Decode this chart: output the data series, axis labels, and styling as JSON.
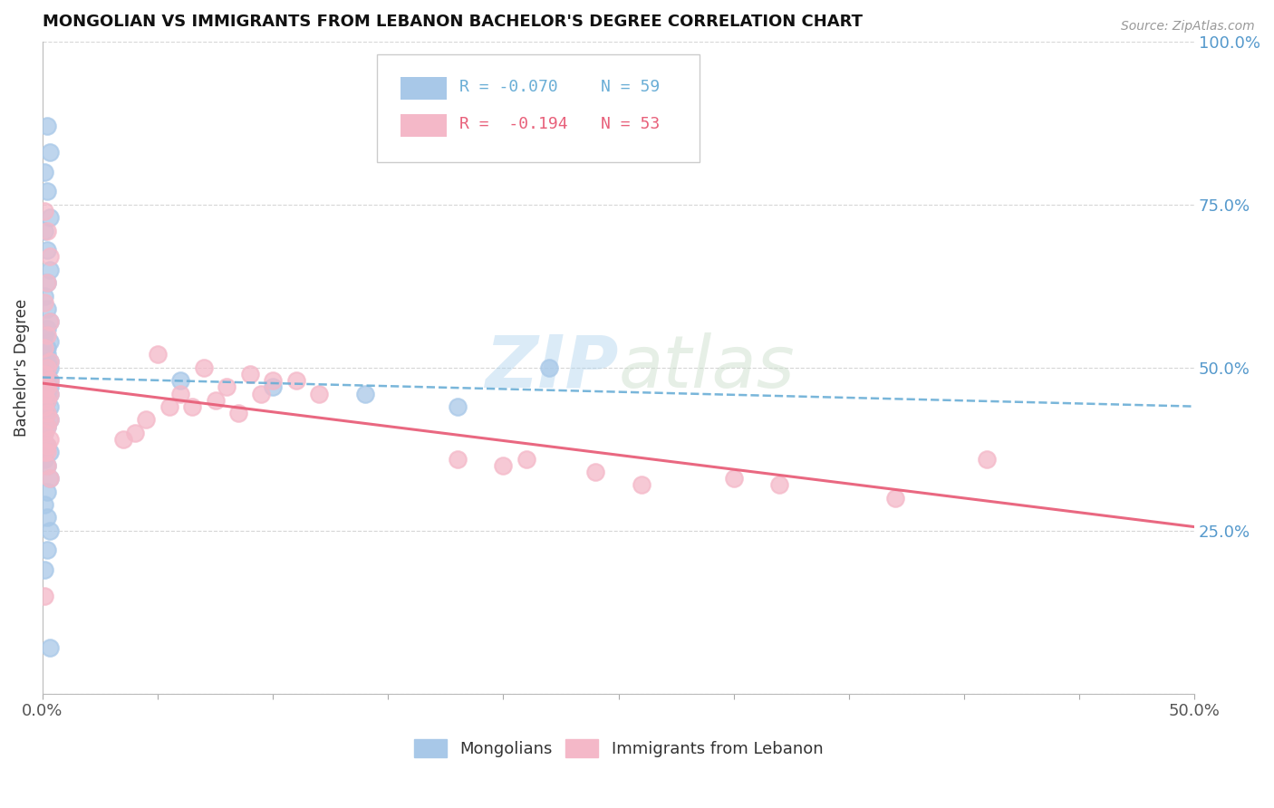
{
  "title": "MONGOLIAN VS IMMIGRANTS FROM LEBANON BACHELOR'S DEGREE CORRELATION CHART",
  "source": "Source: ZipAtlas.com",
  "ylabel": "Bachelor's Degree",
  "xlim": [
    0.0,
    0.5
  ],
  "ylim": [
    0.0,
    1.0
  ],
  "xtick_positions": [
    0.0,
    0.05,
    0.1,
    0.15,
    0.2,
    0.25,
    0.3,
    0.35,
    0.4,
    0.45,
    0.5
  ],
  "xticklabels": [
    "0.0%",
    "",
    "",
    "",
    "",
    "",
    "",
    "",
    "",
    "",
    "50.0%"
  ],
  "ytick_positions": [
    0.0,
    0.25,
    0.5,
    0.75,
    1.0
  ],
  "yticklabels": [
    "",
    "25.0%",
    "50.0%",
    "75.0%",
    "100.0%"
  ],
  "legend_r1": "R = -0.070",
  "legend_n1": "N = 59",
  "legend_r2": "R =  -0.194",
  "legend_n2": "N = 53",
  "mongolian_color": "#a8c8e8",
  "lebanon_color": "#f4b8c8",
  "mongolian_line_color": "#6aaed6",
  "lebanon_line_color": "#e8607a",
  "watermark_zip": "ZIP",
  "watermark_atlas": "atlas",
  "mongolian_x": [
    0.002,
    0.003,
    0.001,
    0.002,
    0.003,
    0.001,
    0.002,
    0.003,
    0.002,
    0.001,
    0.002,
    0.003,
    0.002,
    0.001,
    0.003,
    0.002,
    0.001,
    0.002,
    0.003,
    0.002,
    0.001,
    0.002,
    0.003,
    0.002,
    0.001,
    0.003,
    0.002,
    0.001,
    0.002,
    0.003,
    0.001,
    0.002,
    0.003,
    0.002,
    0.001,
    0.002,
    0.003,
    0.002,
    0.001,
    0.003,
    0.002,
    0.001,
    0.002,
    0.003,
    0.001,
    0.002,
    0.003,
    0.002,
    0.001,
    0.002,
    0.003,
    0.002,
    0.001,
    0.003,
    0.14,
    0.18,
    0.22,
    0.1,
    0.06
  ],
  "mongolian_y": [
    0.87,
    0.83,
    0.8,
    0.77,
    0.73,
    0.71,
    0.68,
    0.65,
    0.63,
    0.61,
    0.59,
    0.57,
    0.56,
    0.55,
    0.54,
    0.53,
    0.52,
    0.52,
    0.51,
    0.51,
    0.5,
    0.5,
    0.5,
    0.49,
    0.49,
    0.48,
    0.48,
    0.48,
    0.47,
    0.47,
    0.46,
    0.46,
    0.46,
    0.45,
    0.45,
    0.45,
    0.44,
    0.43,
    0.43,
    0.42,
    0.41,
    0.4,
    0.38,
    0.37,
    0.36,
    0.35,
    0.33,
    0.31,
    0.29,
    0.27,
    0.25,
    0.22,
    0.19,
    0.07,
    0.46,
    0.44,
    0.5,
    0.47,
    0.48
  ],
  "lebanon_x": [
    0.001,
    0.002,
    0.003,
    0.002,
    0.001,
    0.003,
    0.002,
    0.001,
    0.003,
    0.002,
    0.001,
    0.003,
    0.002,
    0.001,
    0.003,
    0.002,
    0.001,
    0.002,
    0.003,
    0.002,
    0.001,
    0.003,
    0.002,
    0.001,
    0.05,
    0.07,
    0.09,
    0.11,
    0.08,
    0.06,
    0.095,
    0.075,
    0.065,
    0.085,
    0.1,
    0.12,
    0.055,
    0.045,
    0.04,
    0.035,
    0.18,
    0.2,
    0.21,
    0.24,
    0.26,
    0.3,
    0.32,
    0.37,
    0.41,
    0.002,
    0.003,
    0.001,
    0.002
  ],
  "lebanon_y": [
    0.74,
    0.71,
    0.67,
    0.63,
    0.6,
    0.57,
    0.55,
    0.53,
    0.51,
    0.5,
    0.49,
    0.48,
    0.47,
    0.46,
    0.46,
    0.45,
    0.44,
    0.43,
    0.42,
    0.41,
    0.4,
    0.39,
    0.38,
    0.37,
    0.52,
    0.5,
    0.49,
    0.48,
    0.47,
    0.46,
    0.46,
    0.45,
    0.44,
    0.43,
    0.48,
    0.46,
    0.44,
    0.42,
    0.4,
    0.39,
    0.36,
    0.35,
    0.36,
    0.34,
    0.32,
    0.33,
    0.32,
    0.3,
    0.36,
    0.35,
    0.33,
    0.15,
    0.37
  ]
}
